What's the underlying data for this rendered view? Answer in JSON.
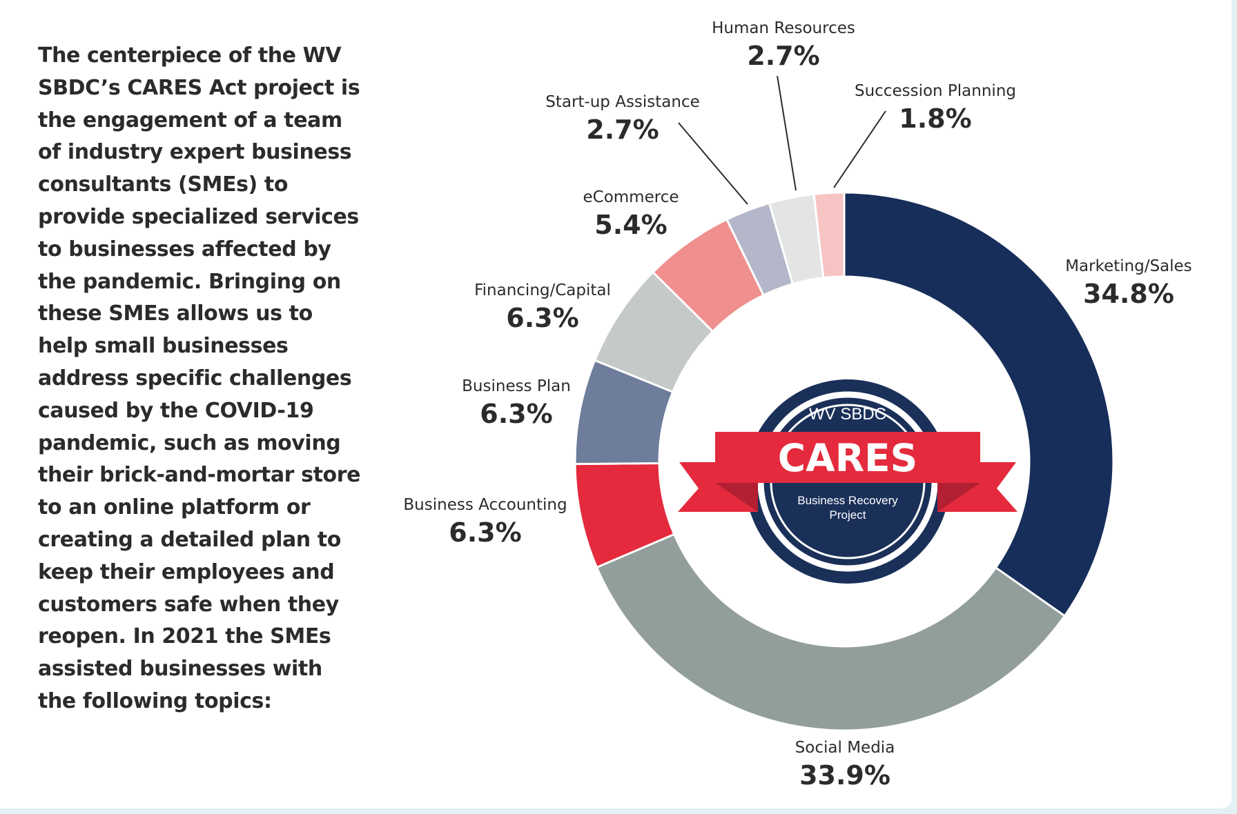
{
  "intro_text": "The centerpiece of the WV SBDC’s CARES Act project is the engagement of a team of industry expert business consultants (SMEs) to provide specialized services to businesses affected by the pandemic. Bringing on these SMEs allows us to help small businesses address specific challenges caused by the COVID-19 pandemic, such as moving their brick-and-mortar store to an online platform or creating a detailed plan to keep their employees and customers safe when they reopen. In 2021 the SMEs assisted businesses with the following topics:",
  "badge": {
    "top_text": "WV SBDC",
    "main_text": "CARES",
    "sub_line1": "Business Recovery",
    "sub_line2": "Project",
    "navy": "#1a3059",
    "red": "#e42a3c",
    "dark_red": "#b31f33"
  },
  "chart_data": {
    "type": "pie",
    "donut": true,
    "start": "12 o'clock",
    "direction": "clockwise",
    "slices": [
      {
        "label": "Marketing/Sales",
        "value_label": "34.8%",
        "value": 34.8,
        "color": "#172e5a"
      },
      {
        "label": "Social Media",
        "value_label": "33.9%",
        "value": 33.9,
        "color": "#929e9c"
      },
      {
        "label": "Business Accounting",
        "value_label": "6.3%",
        "value": 6.3,
        "color": "#e42a3c"
      },
      {
        "label": "Business Plan",
        "value_label": "6.3%",
        "value": 6.3,
        "color": "#6e7d9c"
      },
      {
        "label": "Financing/Capital",
        "value_label": "6.3%",
        "value": 6.3,
        "color": "#c5c9c7"
      },
      {
        "label": "eCommerce",
        "value_label": "5.4%",
        "value": 5.4,
        "color": "#ef908e"
      },
      {
        "label": "Start-up Assistance",
        "value_label": "2.7%",
        "value": 2.7,
        "color": "#b3b7c9"
      },
      {
        "label": "Human Resources",
        "value_label": "2.7%",
        "value": 2.7,
        "color": "#e2e5e3"
      },
      {
        "label": "Succession Planning",
        "value_label": "1.8%",
        "value": 1.8,
        "color": "#f6c4c3"
      }
    ]
  }
}
